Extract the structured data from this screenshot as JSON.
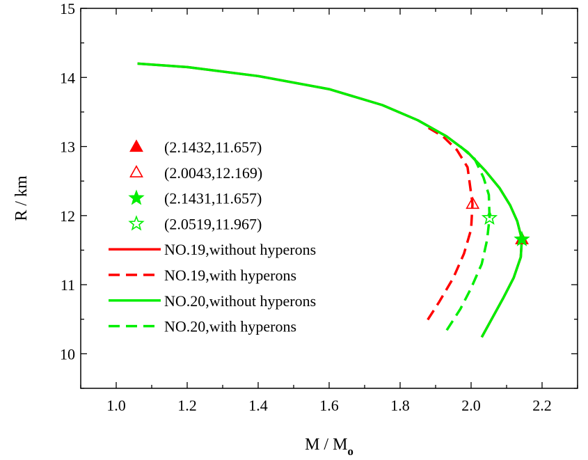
{
  "chart_data": {
    "type": "line",
    "xlabel": "M / M",
    "xlabel_sub": "o",
    "ylabel": "R / km",
    "xlim": [
      0.9,
      2.3
    ],
    "ylim": [
      9.5,
      15
    ],
    "x_ticks": [
      1.0,
      1.2,
      1.4,
      1.6,
      1.8,
      2.0,
      2.2
    ],
    "x_tick_labels": [
      "1.0",
      "1.2",
      "1.4",
      "1.6",
      "1.8",
      "2.0",
      "2.2"
    ],
    "y_ticks": [
      10,
      11,
      12,
      13,
      14,
      15
    ],
    "y_tick_labels": [
      "10",
      "11",
      "12",
      "13",
      "14",
      "15"
    ],
    "grid": false,
    "legend_position": "left",
    "series": [
      {
        "name": "NO.19,without hyperons",
        "color": "#ff0000",
        "style": "solid",
        "x": [
          1.06,
          1.2,
          1.4,
          1.6,
          1.75,
          1.85,
          1.93,
          1.99,
          2.04,
          2.08,
          2.11,
          2.13,
          2.143,
          2.14,
          2.12,
          2.09,
          2.06,
          2.03
        ],
        "y": [
          14.2,
          14.15,
          14.02,
          13.83,
          13.6,
          13.38,
          13.15,
          12.92,
          12.65,
          12.4,
          12.15,
          11.92,
          11.66,
          11.4,
          11.1,
          10.8,
          10.52,
          10.24
        ]
      },
      {
        "name": "NO.19,with hyperons",
        "color": "#ff0000",
        "style": "dashed",
        "x": [
          1.88,
          1.92,
          1.96,
          1.99,
          2.004,
          2.0,
          1.98,
          1.95,
          1.91,
          1.87
        ],
        "y": [
          13.27,
          13.15,
          12.95,
          12.7,
          12.17,
          11.8,
          11.45,
          11.1,
          10.75,
          10.43
        ]
      },
      {
        "name": "NO.20,without hyperons",
        "color": "#00ee00",
        "style": "solid",
        "x": [
          1.06,
          1.2,
          1.4,
          1.6,
          1.75,
          1.85,
          1.93,
          1.99,
          2.04,
          2.08,
          2.11,
          2.13,
          2.143,
          2.14,
          2.12,
          2.09,
          2.06,
          2.03
        ],
        "y": [
          14.2,
          14.15,
          14.02,
          13.83,
          13.6,
          13.38,
          13.15,
          12.92,
          12.65,
          12.4,
          12.15,
          11.92,
          11.66,
          11.4,
          11.1,
          10.8,
          10.52,
          10.24
        ]
      },
      {
        "name": "NO.20,with hyperons",
        "color": "#00ee00",
        "style": "dashed",
        "x": [
          1.97,
          2.01,
          2.035,
          2.05,
          2.052,
          2.045,
          2.03,
          2.0,
          1.97,
          1.93
        ],
        "y": [
          13.0,
          12.82,
          12.55,
          12.3,
          11.97,
          11.65,
          11.3,
          10.95,
          10.65,
          10.33
        ]
      }
    ],
    "markers": [
      {
        "label": "(2.1432,11.657)",
        "x": 2.1432,
        "y": 11.657,
        "symbol": "triangle",
        "filled": true,
        "color": "#ff0000"
      },
      {
        "label": "(2.0043,12.169)",
        "x": 2.0043,
        "y": 12.169,
        "symbol": "triangle",
        "filled": false,
        "color": "#ff0000"
      },
      {
        "label": "(2.1431,11.657)",
        "x": 2.1431,
        "y": 11.657,
        "symbol": "star",
        "filled": true,
        "color": "#00ee00"
      },
      {
        "label": "(2.0519,11.967)",
        "x": 2.0519,
        "y": 11.967,
        "symbol": "star",
        "filled": false,
        "color": "#00ee00"
      }
    ]
  }
}
